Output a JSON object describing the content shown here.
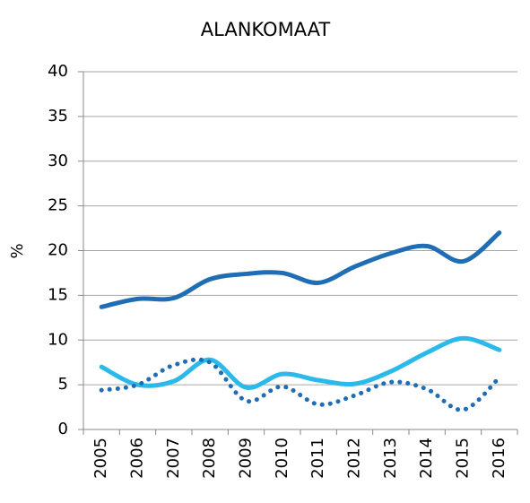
{
  "chart_data": {
    "type": "line",
    "title": "ALANKOMAAT",
    "y_label": "%",
    "categories": [
      "2005",
      "2006",
      "2007",
      "2008",
      "2009",
      "2010",
      "2011",
      "2012",
      "2013",
      "2014",
      "2015",
      "2016"
    ],
    "series": [
      {
        "color": "#1f6db5",
        "style": "solid",
        "values": [
          13.7,
          14.6,
          14.7,
          16.8,
          17.4,
          17.5,
          16.4,
          18.2,
          19.7,
          20.5,
          18.8,
          22.0
        ]
      },
      {
        "color": "#2bb8ea",
        "style": "solid",
        "values": [
          7.0,
          5.0,
          5.4,
          7.8,
          4.7,
          6.2,
          5.5,
          5.1,
          6.5,
          8.6,
          10.2,
          8.9
        ]
      },
      {
        "color": "#1f6db5",
        "style": "dotted",
        "values": [
          4.4,
          5.0,
          7.2,
          7.5,
          3.2,
          4.8,
          2.8,
          3.8,
          5.3,
          4.5,
          2.2,
          5.8
        ]
      }
    ],
    "ylim": [
      0,
      40
    ],
    "yticks": [
      0,
      5,
      10,
      15,
      20,
      25,
      30,
      35,
      40
    ],
    "grid": true
  }
}
